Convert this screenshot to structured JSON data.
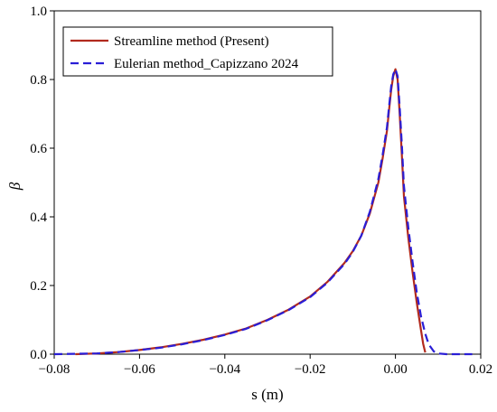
{
  "chart_data": {
    "type": "line",
    "xlabel": "s (m)",
    "ylabel": "β",
    "xlim": [
      -0.08,
      0.02
    ],
    "ylim": [
      0,
      1.0
    ],
    "xticks": [
      -0.08,
      -0.06,
      -0.04,
      -0.02,
      0.0,
      0.02
    ],
    "xtick_labels": [
      "−0.08",
      "−0.06",
      "−0.04",
      "−0.02",
      "0.00",
      "0.02"
    ],
    "yticks": [
      0.0,
      0.2,
      0.4,
      0.6,
      0.8,
      1.0
    ],
    "ytick_labels": [
      "0.0",
      "0.2",
      "0.4",
      "0.6",
      "0.8",
      "1.0"
    ],
    "legend_position": "top-left",
    "grid": false,
    "series": [
      {
        "name": "Streamline method (Present)",
        "color": "#b22a1e",
        "style": "solid",
        "x": [
          -0.075,
          -0.07,
          -0.065,
          -0.06,
          -0.055,
          -0.05,
          -0.045,
          -0.04,
          -0.035,
          -0.03,
          -0.025,
          -0.02,
          -0.016,
          -0.012,
          -0.01,
          -0.008,
          -0.006,
          -0.004,
          -0.003,
          -0.002,
          -0.0015,
          -0.001,
          -0.0005,
          0.0,
          0.0005,
          0.001,
          0.0015,
          0.002,
          0.003,
          0.004,
          0.005,
          0.006,
          0.0065,
          0.007
        ],
        "y": [
          0.0,
          0.002,
          0.006,
          0.012,
          0.02,
          0.03,
          0.042,
          0.057,
          0.075,
          0.1,
          0.13,
          0.168,
          0.21,
          0.265,
          0.3,
          0.345,
          0.41,
          0.5,
          0.57,
          0.65,
          0.71,
          0.77,
          0.81,
          0.83,
          0.8,
          0.7,
          0.58,
          0.46,
          0.34,
          0.24,
          0.15,
          0.07,
          0.03,
          0.005
        ]
      },
      {
        "name": "Eulerian method_Capizzano 2024",
        "color": "#2a1ed6",
        "style": "dashed",
        "x": [
          -0.08,
          -0.075,
          -0.07,
          -0.065,
          -0.06,
          -0.055,
          -0.05,
          -0.045,
          -0.04,
          -0.035,
          -0.03,
          -0.025,
          -0.02,
          -0.016,
          -0.012,
          -0.01,
          -0.008,
          -0.006,
          -0.004,
          -0.003,
          -0.002,
          -0.0015,
          -0.001,
          -0.0005,
          0.0,
          0.0005,
          0.001,
          0.0015,
          0.002,
          0.003,
          0.004,
          0.005,
          0.006,
          0.007,
          0.0075,
          0.008,
          0.009,
          0.01,
          0.012,
          0.015,
          0.018
        ],
        "y": [
          0.0,
          0.001,
          0.002,
          0.006,
          0.012,
          0.019,
          0.029,
          0.041,
          0.056,
          0.074,
          0.099,
          0.129,
          0.166,
          0.208,
          0.262,
          0.298,
          0.345,
          0.415,
          0.51,
          0.58,
          0.66,
          0.72,
          0.78,
          0.815,
          0.83,
          0.81,
          0.72,
          0.61,
          0.49,
          0.37,
          0.27,
          0.18,
          0.11,
          0.06,
          0.04,
          0.025,
          0.008,
          0.002,
          0.0,
          0.0,
          0.0
        ]
      }
    ]
  }
}
